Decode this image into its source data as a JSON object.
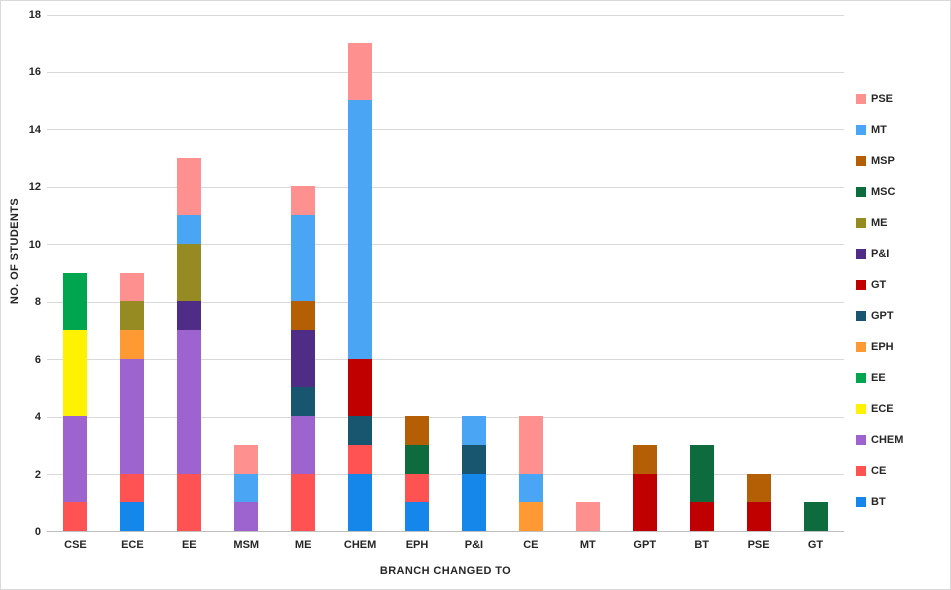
{
  "chart_data": {
    "type": "stacked-bar",
    "title": "",
    "xlabel": "BRANCH CHANGED TO",
    "ylabel": "NO. OF STUDENTS",
    "ylim": [
      0,
      18
    ],
    "ytick_step": 2,
    "grid": true,
    "legend_position": "right",
    "categories": [
      "CSE",
      "ECE",
      "EE",
      "MSM",
      "ME",
      "CHEM",
      "EPH",
      "P&I",
      "CE",
      "MT",
      "GPT",
      "BT",
      "PSE",
      "GT"
    ],
    "legend_order": [
      "PSE",
      "MT",
      "MSP",
      "MSC",
      "ME",
      "P&I",
      "GT",
      "GPT",
      "EPH",
      "EE",
      "ECE",
      "CHEM",
      "CE",
      "BT"
    ],
    "colors": {
      "BT": "#1687EA",
      "CE": "#FF5252",
      "CHEM": "#9D63CE",
      "ECE": "#FFF200",
      "EE": "#00A550",
      "EPH": "#FF9933",
      "GPT": "#17566E",
      "GT": "#C00000",
      "P&I": "#4F2D87",
      "ME": "#958B22",
      "MSC": "#0E6B3D",
      "MSP": "#B45F06",
      "MT": "#4AA6F4",
      "PSE": "#FF9090"
    },
    "series": [
      {
        "name": "BT",
        "values": [
          0,
          1,
          0,
          0,
          0,
          2,
          1,
          2,
          0,
          0,
          0,
          0,
          0,
          0
        ]
      },
      {
        "name": "CE",
        "values": [
          1,
          1,
          2,
          0,
          2,
          1,
          1,
          0,
          0,
          0,
          0,
          0,
          0,
          0
        ]
      },
      {
        "name": "CHEM",
        "values": [
          3,
          4,
          5,
          1,
          2,
          0,
          0,
          0,
          0,
          0,
          0,
          0,
          0,
          0
        ]
      },
      {
        "name": "ECE",
        "values": [
          3,
          0,
          0,
          0,
          0,
          0,
          0,
          0,
          0,
          0,
          0,
          0,
          0,
          0
        ]
      },
      {
        "name": "EE",
        "values": [
          2,
          0,
          0,
          0,
          0,
          0,
          0,
          0,
          0,
          0,
          0,
          0,
          0,
          0
        ]
      },
      {
        "name": "EPH",
        "values": [
          0,
          1,
          0,
          0,
          0,
          0,
          0,
          0,
          1,
          0,
          0,
          0,
          0,
          0
        ]
      },
      {
        "name": "GPT",
        "values": [
          0,
          0,
          0,
          0,
          1,
          1,
          0,
          1,
          0,
          0,
          0,
          0,
          0,
          0
        ]
      },
      {
        "name": "GT",
        "values": [
          0,
          0,
          0,
          0,
          0,
          2,
          0,
          0,
          0,
          0,
          2,
          1,
          1,
          0
        ]
      },
      {
        "name": "P&I",
        "values": [
          0,
          0,
          1,
          0,
          2,
          0,
          0,
          0,
          0,
          0,
          0,
          0,
          0,
          0
        ]
      },
      {
        "name": "ME",
        "values": [
          0,
          1,
          2,
          0,
          0,
          0,
          0,
          0,
          0,
          0,
          0,
          0,
          0,
          0
        ]
      },
      {
        "name": "MSC",
        "values": [
          0,
          0,
          0,
          0,
          0,
          0,
          1,
          0,
          0,
          0,
          0,
          2,
          0,
          1
        ]
      },
      {
        "name": "MSP",
        "values": [
          0,
          0,
          0,
          0,
          1,
          0,
          1,
          0,
          0,
          0,
          1,
          0,
          1,
          0
        ]
      },
      {
        "name": "MT",
        "values": [
          0,
          0,
          1,
          1,
          3,
          9,
          0,
          1,
          1,
          0,
          0,
          0,
          0,
          0
        ]
      },
      {
        "name": "PSE",
        "values": [
          0,
          1,
          2,
          1,
          1,
          2,
          0,
          0,
          2,
          1,
          0,
          0,
          0,
          0
        ]
      }
    ]
  }
}
